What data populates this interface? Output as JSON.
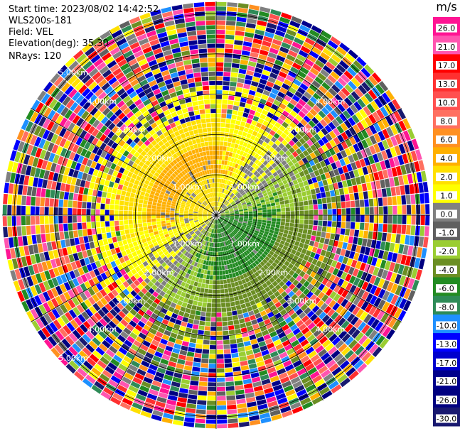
{
  "info": {
    "start_time": "Start time: 2023/08/02 14:42:52",
    "instrument": "WLS200s-181",
    "field": "Field: VEL",
    "elevation": "Elevation(deg): 35.30",
    "nrays": "NRays: 120"
  },
  "chart_data": {
    "type": "heatmap",
    "projection": "polar-ppi",
    "n_rays": 120,
    "range_rings_km": [
      "1.00km",
      "2.00km",
      "3.00km",
      "4.00km",
      "5.00km"
    ],
    "range_ring_labels_by_quadrant": {
      "upper_left": [
        "1.00km",
        "2.00km",
        "3.00km",
        "4.00km",
        "5.00km"
      ],
      "upper_right": [
        "1.00km",
        "2.00km",
        "3.00km",
        "4.00km"
      ],
      "lower_left": [
        "1.00km",
        "2.00km",
        "3.00km",
        "4.00km",
        "5.00km"
      ],
      "lower_right": [
        "1.00km",
        "2.00km",
        "3.00km",
        "4.00km"
      ]
    },
    "colorbar": {
      "unit": "m/s",
      "ticks": [
        "26.0",
        "21.0",
        "17.0",
        "13.0",
        "10.0",
        "8.0",
        "6.0",
        "4.0",
        "2.0",
        "1.0",
        "0.0",
        "-1.0",
        "-2.0",
        "-4.0",
        "-6.0",
        "-8.0",
        "-10.0",
        "-13.0",
        "-17.0",
        "-21.0",
        "-26.0",
        "-30.0"
      ],
      "colors": [
        "#ff1493",
        "#ff55b0",
        "#ff0000",
        "#ff3030",
        "#ff5050",
        "#ff7060",
        "#ff9020",
        "#ffb000",
        "#ffe000",
        "#ffff00",
        "#808080",
        "#606060",
        "#9acd32",
        "#6b8e23",
        "#228b22",
        "#2e8b57",
        "#1e90ff",
        "#0000ff",
        "#0000cd",
        "#00008b",
        "#000080",
        "#191970"
      ]
    },
    "field": "VEL",
    "elevation_deg": 35.3
  }
}
